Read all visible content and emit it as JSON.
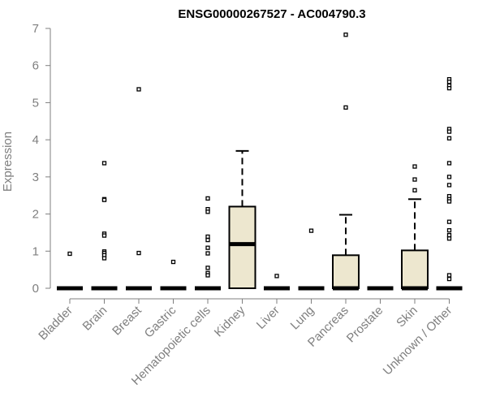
{
  "chart_data": {
    "type": "boxplot",
    "title": "ENSG00000267527 - AC004790.3",
    "ylabel": "Expression",
    "xlabel": "",
    "ylim": [
      0,
      7
    ],
    "yticks": [
      0,
      1,
      2,
      3,
      4,
      5,
      6,
      7
    ],
    "box_fill": "#ede7cf",
    "categories": [
      "Bladder",
      "Brain",
      "Breast",
      "Gastric",
      "Hematopoietic cells",
      "Kidney",
      "Liver",
      "Lung",
      "Pancreas",
      "Prostate",
      "Skin",
      "Unknown / Other"
    ],
    "boxes": [
      {
        "category": "Bladder",
        "q1": 0,
        "median": 0,
        "q3": 0,
        "whisker_low": 0,
        "whisker_high": 0,
        "outliers": [
          0.93
        ]
      },
      {
        "category": "Brain",
        "q1": 0,
        "median": 0,
        "q3": 0,
        "whisker_low": 0,
        "whisker_high": 0,
        "outliers": [
          3.37,
          2.4,
          2.38,
          1.47,
          1.42,
          0.99,
          0.95,
          0.89,
          0.81
        ]
      },
      {
        "category": "Breast",
        "q1": 0,
        "median": 0,
        "q3": 0,
        "whisker_low": 0,
        "whisker_high": 0,
        "outliers": [
          5.36,
          0.95
        ]
      },
      {
        "category": "Gastric",
        "q1": 0,
        "median": 0,
        "q3": 0,
        "whisker_low": 0,
        "whisker_high": 0,
        "outliers": [
          0.71
        ]
      },
      {
        "category": "Hematopoietic cells",
        "q1": 0,
        "median": 0,
        "q3": 0,
        "whisker_low": 0,
        "whisker_high": 0,
        "outliers": [
          2.42,
          2.13,
          2.06,
          1.39,
          1.3,
          1.09,
          0.94,
          0.55,
          0.41,
          0.35
        ]
      },
      {
        "category": "Kidney",
        "q1": 0,
        "median": 1.19,
        "q3": 2.2,
        "whisker_low": 0,
        "whisker_high": 3.7,
        "outliers": []
      },
      {
        "category": "Liver",
        "q1": 0,
        "median": 0,
        "q3": 0,
        "whisker_low": 0,
        "whisker_high": 0,
        "outliers": [
          0.33
        ]
      },
      {
        "category": "Lung",
        "q1": 0,
        "median": 0,
        "q3": 0,
        "whisker_low": 0,
        "whisker_high": 0,
        "outliers": [
          1.55
        ]
      },
      {
        "category": "Pancreas",
        "q1": 0,
        "median": 0,
        "q3": 0.89,
        "whisker_low": 0,
        "whisker_high": 1.98,
        "outliers": [
          6.83,
          4.87
        ]
      },
      {
        "category": "Prostate",
        "q1": 0,
        "median": 0,
        "q3": 0,
        "whisker_low": 0,
        "whisker_high": 0,
        "outliers": []
      },
      {
        "category": "Skin",
        "q1": 0,
        "median": 0,
        "q3": 1.02,
        "whisker_low": 0,
        "whisker_high": 2.4,
        "outliers": [
          3.28,
          2.93,
          2.64
        ]
      },
      {
        "category": "Unknown / Other",
        "q1": 0,
        "median": 0,
        "q3": 0,
        "whisker_low": 0,
        "whisker_high": 0,
        "outliers": [
          5.63,
          5.56,
          5.46,
          5.39,
          4.29,
          4.22,
          4.04,
          3.37,
          3.0,
          2.78,
          2.48,
          2.4,
          2.34,
          1.79,
          1.56,
          1.43,
          1.34,
          0.35,
          0.25
        ]
      }
    ]
  }
}
